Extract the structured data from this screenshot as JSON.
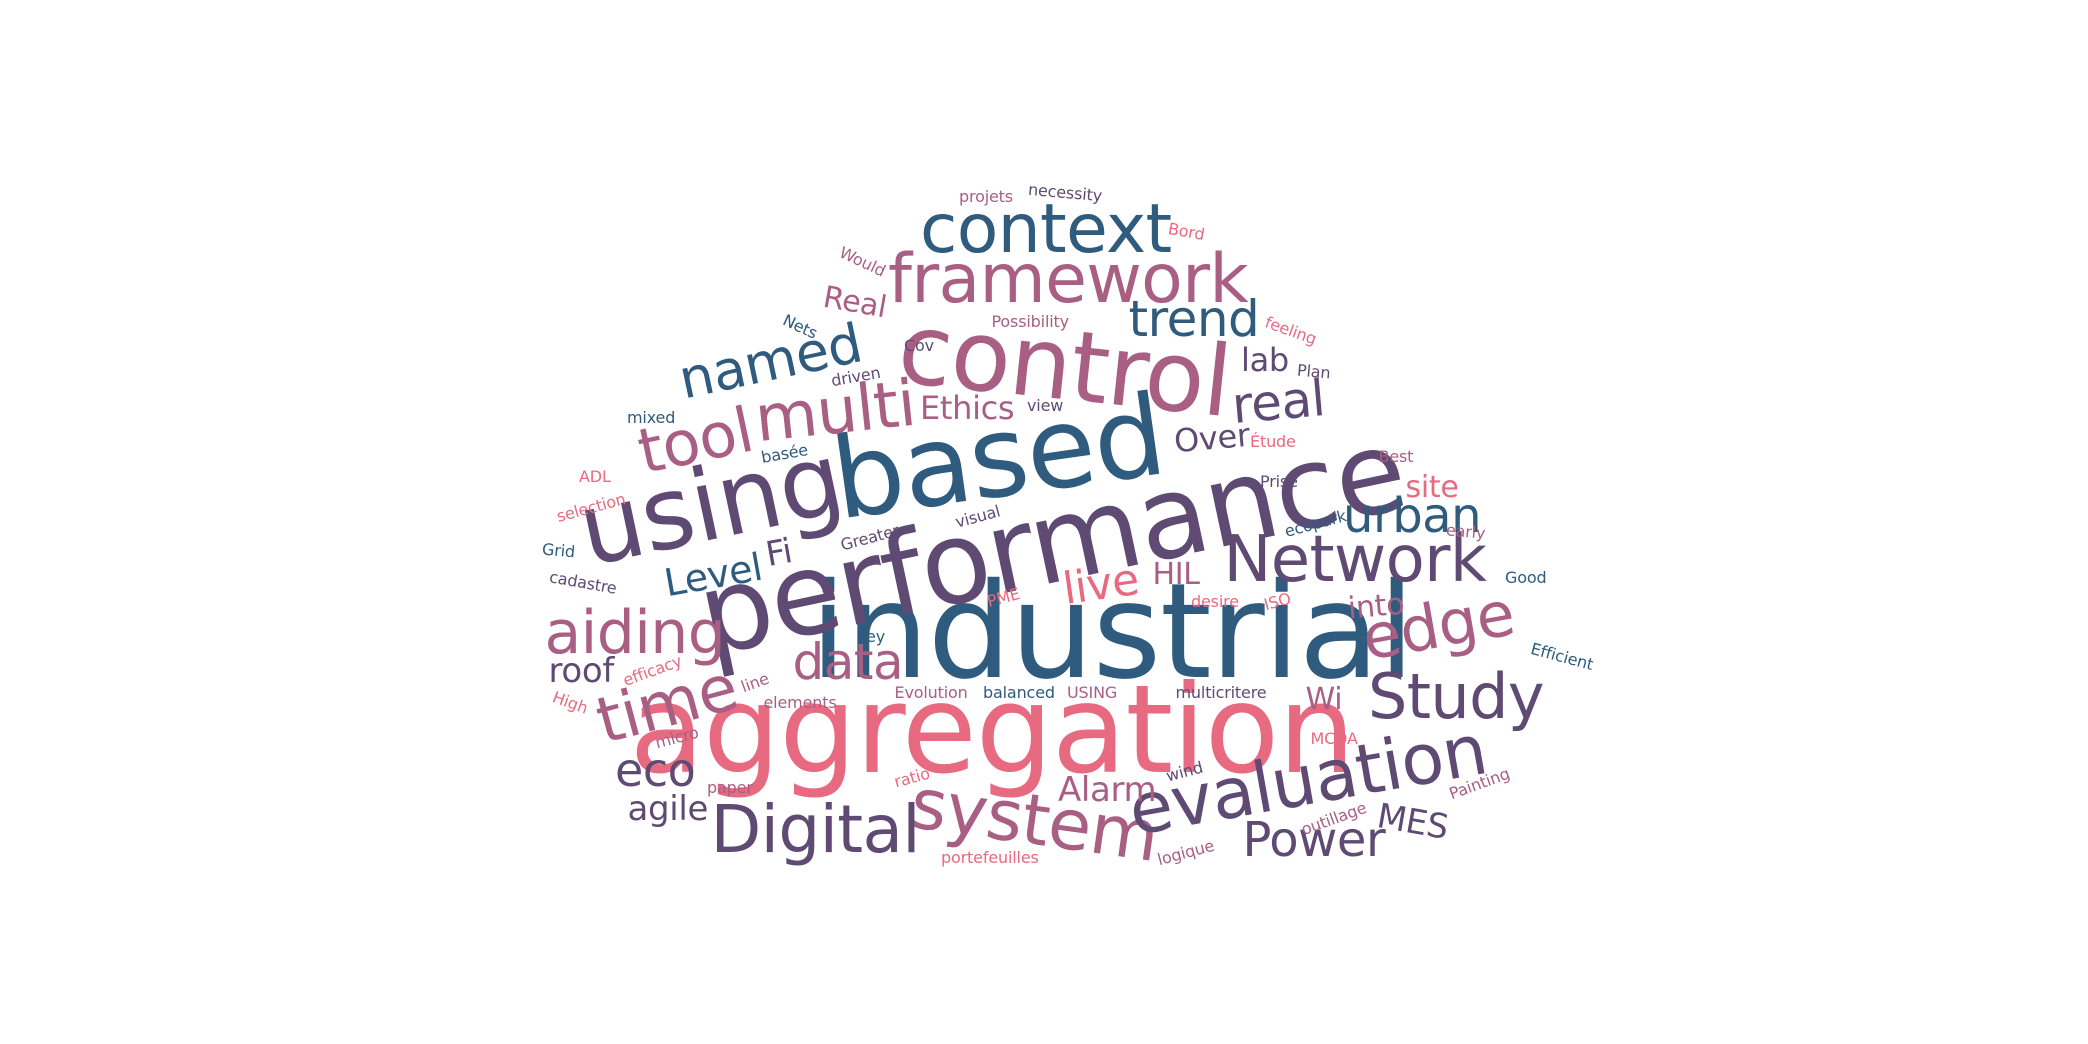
{
  "palette": {
    "navy": "#2e5b7e",
    "purple": "#5f4a73",
    "mauve": "#a85f83",
    "pink": "#e86a80"
  },
  "words": [
    {
      "text": "industrial",
      "color": "navy"
    },
    {
      "text": "aggregation",
      "color": "pink"
    },
    {
      "text": "performance",
      "color": "purple"
    },
    {
      "text": "based",
      "color": "navy"
    },
    {
      "text": "using",
      "color": "purple"
    },
    {
      "text": "control",
      "color": "mauve"
    },
    {
      "text": "context",
      "color": "navy"
    },
    {
      "text": "framework",
      "color": "mauve"
    },
    {
      "text": "system",
      "color": "mauve"
    },
    {
      "text": "evaluation",
      "color": "purple"
    },
    {
      "text": "Digital",
      "color": "purple"
    },
    {
      "text": "Network",
      "color": "purple"
    },
    {
      "text": "Study",
      "color": "purple"
    },
    {
      "text": "multi",
      "color": "mauve"
    },
    {
      "text": "edge",
      "color": "mauve"
    },
    {
      "text": "aiding",
      "color": "mauve"
    },
    {
      "text": "time",
      "color": "mauve"
    },
    {
      "text": "tool",
      "color": "mauve"
    },
    {
      "text": "named",
      "color": "navy"
    },
    {
      "text": "data",
      "color": "mauve"
    },
    {
      "text": "real",
      "color": "purple"
    },
    {
      "text": "trend",
      "color": "navy"
    },
    {
      "text": "urban",
      "color": "navy"
    },
    {
      "text": "Power",
      "color": "purple"
    },
    {
      "text": "eco",
      "color": "purple"
    },
    {
      "text": "live",
      "color": "pink"
    },
    {
      "text": "Level",
      "color": "navy"
    },
    {
      "text": "Fi",
      "color": "purple"
    },
    {
      "text": "roof",
      "color": "purple"
    },
    {
      "text": "agile",
      "color": "purple"
    },
    {
      "text": "Alarm",
      "color": "mauve"
    },
    {
      "text": "MES",
      "color": "purple"
    },
    {
      "text": "Ethics",
      "color": "mauve"
    },
    {
      "text": "Over",
      "color": "purple"
    },
    {
      "text": "lab",
      "color": "purple"
    },
    {
      "text": "HIL",
      "color": "mauve"
    },
    {
      "text": "into",
      "color": "mauve"
    },
    {
      "text": "site",
      "color": "pink"
    },
    {
      "text": "Wi",
      "color": "mauve"
    },
    {
      "text": "Real",
      "color": "mauve"
    },
    {
      "text": "projets",
      "color": "mauve"
    },
    {
      "text": "necessity",
      "color": "purple"
    },
    {
      "text": "Bord",
      "color": "pink"
    },
    {
      "text": "Would",
      "color": "mauve"
    },
    {
      "text": "feeling",
      "color": "pink"
    },
    {
      "text": "Nets",
      "color": "navy"
    },
    {
      "text": "Possibility",
      "color": "mauve"
    },
    {
      "text": "Cov",
      "color": "purple"
    },
    {
      "text": "driven",
      "color": "purple"
    },
    {
      "text": "Plan",
      "color": "purple"
    },
    {
      "text": "view",
      "color": "purple"
    },
    {
      "text": "mixed",
      "color": "navy"
    },
    {
      "text": "Étude",
      "color": "pink"
    },
    {
      "text": "basée",
      "color": "navy"
    },
    {
      "text": "ADL",
      "color": "pink"
    },
    {
      "text": "Best",
      "color": "mauve"
    },
    {
      "text": "Prise",
      "color": "purple"
    },
    {
      "text": "selection",
      "color": "pink"
    },
    {
      "text": "visual",
      "color": "purple"
    },
    {
      "text": "ecopark",
      "color": "navy"
    },
    {
      "text": "Greater",
      "color": "purple"
    },
    {
      "text": "early",
      "color": "mauve"
    },
    {
      "text": "Grid",
      "color": "navy"
    },
    {
      "text": "cadastre",
      "color": "purple"
    },
    {
      "text": "Good",
      "color": "navy"
    },
    {
      "text": "PME",
      "color": "pink"
    },
    {
      "text": "desire",
      "color": "pink"
    },
    {
      "text": "ISO",
      "color": "pink"
    },
    {
      "text": "Key",
      "color": "navy"
    },
    {
      "text": "efficacy",
      "color": "pink"
    },
    {
      "text": "Efficient",
      "color": "navy"
    },
    {
      "text": "High",
      "color": "pink"
    },
    {
      "text": "line",
      "color": "mauve"
    },
    {
      "text": "Evolution",
      "color": "mauve"
    },
    {
      "text": "balanced",
      "color": "navy"
    },
    {
      "text": "USING",
      "color": "mauve"
    },
    {
      "text": "multicritere",
      "color": "purple"
    },
    {
      "text": "micro",
      "color": "mauve"
    },
    {
      "text": "elements",
      "color": "mauve"
    },
    {
      "text": "MCDA",
      "color": "pink"
    },
    {
      "text": "wind",
      "color": "purple"
    },
    {
      "text": "ratio",
      "color": "pink"
    },
    {
      "text": "paper",
      "color": "mauve"
    },
    {
      "text": "Painting",
      "color": "mauve"
    },
    {
      "text": "outillage",
      "color": "mauve"
    },
    {
      "text": "logique",
      "color": "mauve"
    },
    {
      "text": "portefeuilles",
      "color": "pink"
    }
  ]
}
